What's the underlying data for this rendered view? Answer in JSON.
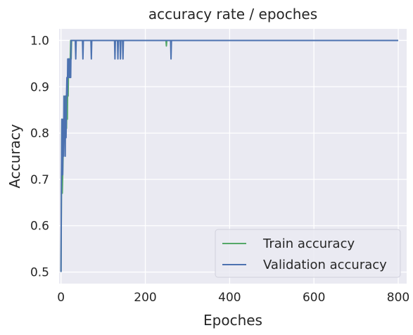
{
  "chart_data": {
    "type": "line",
    "title": "accuracy rate / epoches",
    "xlabel": "Epoches",
    "ylabel": "Accuracy",
    "xlim": [
      -4.5,
      820
    ],
    "ylim": [
      0.475,
      1.025
    ],
    "xticks": [
      0,
      200,
      400,
      600,
      800
    ],
    "yticks": [
      0.5,
      0.6,
      0.7,
      0.8,
      0.9,
      1.0
    ],
    "xtick_labels": [
      "0",
      "200",
      "400",
      "600",
      "800"
    ],
    "ytick_labels": [
      "0.5",
      "0.6",
      "0.7",
      "0.8",
      "0.9",
      "1.0"
    ],
    "grid": true,
    "legend_position": "lower-right",
    "series": [
      {
        "name": "Train accuracy",
        "color": "#55a868",
        "points": [
          [
            0,
            0.5
          ],
          [
            1,
            0.67
          ],
          [
            2,
            0.83
          ],
          [
            3,
            0.67
          ],
          [
            4,
            0.71
          ],
          [
            5,
            0.75
          ],
          [
            6,
            0.79
          ],
          [
            7,
            0.83
          ],
          [
            8,
            0.81
          ],
          [
            9,
            0.83
          ],
          [
            10,
            0.88
          ],
          [
            11,
            0.79
          ],
          [
            12,
            0.85
          ],
          [
            13,
            0.81
          ],
          [
            14,
            0.88
          ],
          [
            15,
            0.83
          ],
          [
            16,
            0.92
          ],
          [
            17,
            0.88
          ],
          [
            18,
            0.96
          ],
          [
            19,
            0.92
          ],
          [
            20,
            0.96
          ],
          [
            21,
            0.92
          ],
          [
            22,
            0.96
          ],
          [
            23,
            1.0
          ],
          [
            24,
            0.96
          ],
          [
            25,
            1.0
          ],
          [
            30,
            1.0
          ],
          [
            35,
            1.0
          ],
          [
            40,
            1.0
          ],
          [
            249,
            1.0
          ],
          [
            250,
            0.988
          ],
          [
            251,
            1.0
          ],
          [
            800,
            1.0
          ]
        ]
      },
      {
        "name": "Validation accuracy",
        "color": "#4c72b0",
        "points": [
          [
            0,
            0.5
          ],
          [
            1,
            0.71
          ],
          [
            2,
            0.83
          ],
          [
            3,
            0.79
          ],
          [
            4,
            0.71
          ],
          [
            5,
            0.83
          ],
          [
            6,
            0.75
          ],
          [
            7,
            0.88
          ],
          [
            8,
            0.79
          ],
          [
            9,
            0.83
          ],
          [
            10,
            0.75
          ],
          [
            11,
            0.88
          ],
          [
            12,
            0.79
          ],
          [
            13,
            0.88
          ],
          [
            14,
            0.92
          ],
          [
            15,
            0.88
          ],
          [
            16,
            0.96
          ],
          [
            17,
            0.92
          ],
          [
            18,
            0.96
          ],
          [
            19,
            0.92
          ],
          [
            20,
            0.96
          ],
          [
            21,
            0.92
          ],
          [
            22,
            0.96
          ],
          [
            23,
            0.92
          ],
          [
            24,
            1.0
          ],
          [
            34,
            1.0
          ],
          [
            35,
            0.96
          ],
          [
            36,
            1.0
          ],
          [
            51,
            1.0
          ],
          [
            52,
            0.96
          ],
          [
            53,
            1.0
          ],
          [
            71,
            1.0
          ],
          [
            72,
            0.96
          ],
          [
            73,
            1.0
          ],
          [
            127,
            1.0
          ],
          [
            128,
            0.96
          ],
          [
            129,
            1.0
          ],
          [
            134,
            1.0
          ],
          [
            135,
            0.96
          ],
          [
            136,
            1.0
          ],
          [
            140,
            1.0
          ],
          [
            141,
            0.96
          ],
          [
            142,
            1.0
          ],
          [
            146,
            1.0
          ],
          [
            147,
            0.96
          ],
          [
            148,
            1.0
          ],
          [
            260,
            1.0
          ],
          [
            261,
            0.96
          ],
          [
            262,
            1.0
          ],
          [
            800,
            1.0
          ]
        ]
      }
    ]
  },
  "style": {
    "plot_background": "#eaeaf2",
    "grid_color": "#ffffff",
    "text_color": "#262626"
  }
}
